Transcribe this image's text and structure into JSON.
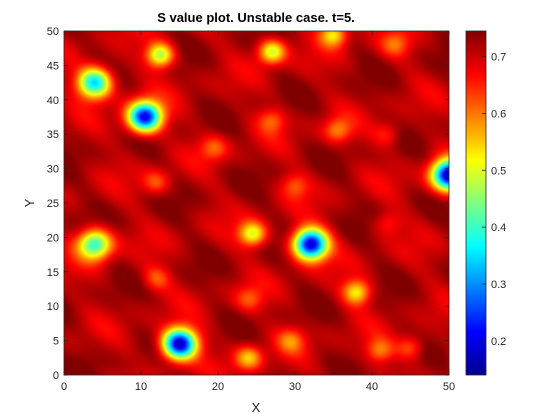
{
  "chart_data": {
    "type": "heatmap",
    "title": "S value plot. Unstable case. t=5.",
    "xlabel": "X",
    "ylabel": "Y",
    "xlim": [
      0,
      50
    ],
    "ylim": [
      0,
      50
    ],
    "xticks": [
      "0",
      "10",
      "20",
      "30",
      "40",
      "50"
    ],
    "yticks": [
      "0",
      "5",
      "10",
      "15",
      "20",
      "25",
      "30",
      "35",
      "40",
      "45",
      "50"
    ],
    "colorbar": {
      "limits": [
        0.14,
        0.745
      ],
      "ticks": [
        "0.2",
        "0.3",
        "0.4",
        "0.5",
        "0.6",
        "0.7"
      ],
      "colormap": "jet"
    },
    "field": {
      "background": 0.715,
      "deep_spots": [
        {
          "x": 15,
          "y": 4.5,
          "value": 0.16
        },
        {
          "x": 32,
          "y": 19,
          "value": 0.17
        },
        {
          "x": 10.5,
          "y": 37.5,
          "value": 0.2
        },
        {
          "x": 50,
          "y": 29,
          "value": 0.16
        },
        {
          "x": 4,
          "y": 42.5,
          "value": 0.33
        },
        {
          "x": 4,
          "y": 19,
          "value": 0.38
        }
      ],
      "shallow_spots": [
        {
          "x": 12.5,
          "y": 46.5,
          "value": 0.46
        },
        {
          "x": 27,
          "y": 47,
          "value": 0.48
        },
        {
          "x": 35,
          "y": 49.5,
          "value": 0.52
        },
        {
          "x": 24.5,
          "y": 20.5,
          "value": 0.5
        },
        {
          "x": 38,
          "y": 12,
          "value": 0.52
        },
        {
          "x": 24,
          "y": 2.5,
          "value": 0.55
        },
        {
          "x": 41,
          "y": 3.5,
          "value": 0.6
        },
        {
          "x": 45,
          "y": 4,
          "value": 0.61
        },
        {
          "x": 29.5,
          "y": 5,
          "value": 0.61
        },
        {
          "x": 27,
          "y": 37,
          "value": 0.62
        },
        {
          "x": 35.5,
          "y": 35.5,
          "value": 0.6
        },
        {
          "x": 12,
          "y": 28,
          "value": 0.62
        },
        {
          "x": 19.5,
          "y": 33,
          "value": 0.62
        },
        {
          "x": 30,
          "y": 27.5,
          "value": 0.63
        },
        {
          "x": 12,
          "y": 14,
          "value": 0.62
        },
        {
          "x": 24,
          "y": 11,
          "value": 0.63
        },
        {
          "x": 42,
          "y": 22,
          "value": 0.65
        },
        {
          "x": 42,
          "y": 35,
          "value": 0.64
        },
        {
          "x": 43,
          "y": 48,
          "value": 0.62
        }
      ]
    }
  }
}
